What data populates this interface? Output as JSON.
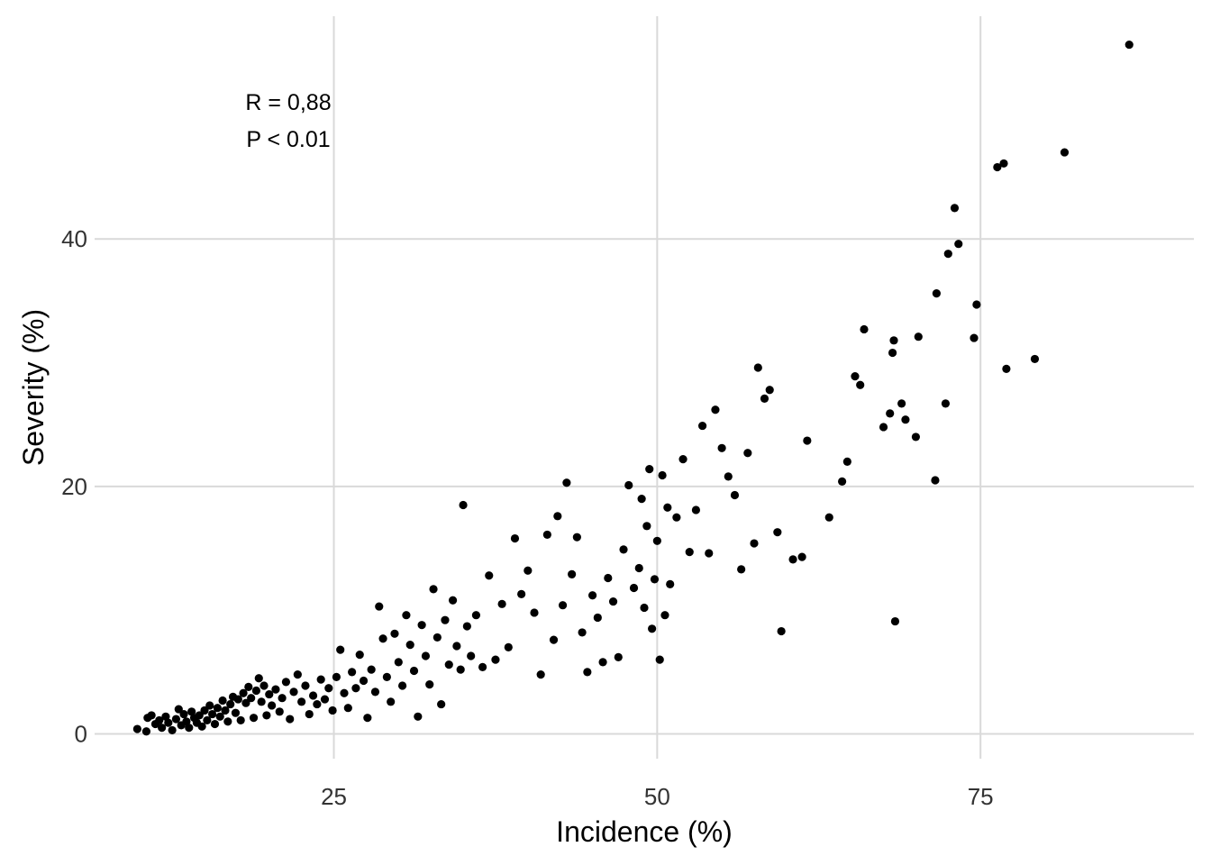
{
  "chart_data": {
    "type": "scatter",
    "title": "",
    "xlabel": "Incidence (%)",
    "ylabel": "Severity (%)",
    "xlim": [
      6.5,
      91.5
    ],
    "ylim": [
      -2.0,
      58.0
    ],
    "x_ticks": [
      25,
      50,
      75
    ],
    "x_tick_labels": [
      "25",
      "50",
      "75"
    ],
    "y_ticks": [
      0,
      20,
      40
    ],
    "y_tick_labels": [
      "0",
      "20",
      "40"
    ],
    "grid": true,
    "legend": "none",
    "point_color": "#000000",
    "annotations": [
      "R = 0,88",
      "P < 0.01"
    ],
    "points": [
      [
        9.8,
        0.4
      ],
      [
        10.5,
        0.2
      ],
      [
        10.6,
        1.3
      ],
      [
        10.9,
        1.5
      ],
      [
        11.2,
        0.8
      ],
      [
        11.5,
        1.1
      ],
      [
        11.7,
        0.5
      ],
      [
        12.0,
        1.4
      ],
      [
        12.2,
        0.9
      ],
      [
        12.5,
        0.3
      ],
      [
        12.8,
        1.2
      ],
      [
        13.0,
        2.0
      ],
      [
        13.2,
        0.7
      ],
      [
        13.4,
        1.6
      ],
      [
        13.6,
        1.0
      ],
      [
        13.8,
        0.5
      ],
      [
        14.0,
        1.8
      ],
      [
        14.2,
        1.3
      ],
      [
        14.4,
        0.9
      ],
      [
        14.6,
        1.5
      ],
      [
        14.8,
        0.6
      ],
      [
        15.0,
        1.9
      ],
      [
        15.2,
        1.1
      ],
      [
        15.4,
        2.3
      ],
      [
        15.6,
        1.6
      ],
      [
        15.8,
        0.8
      ],
      [
        16.0,
        2.1
      ],
      [
        16.2,
        1.4
      ],
      [
        16.4,
        2.7
      ],
      [
        16.6,
        1.9
      ],
      [
        16.8,
        1.0
      ],
      [
        17.0,
        2.4
      ],
      [
        17.2,
        3.0
      ],
      [
        17.4,
        1.7
      ],
      [
        17.6,
        2.8
      ],
      [
        17.8,
        1.1
      ],
      [
        18.0,
        3.3
      ],
      [
        18.2,
        2.5
      ],
      [
        18.4,
        3.8
      ],
      [
        18.6,
        2.9
      ],
      [
        18.8,
        1.3
      ],
      [
        19.0,
        3.5
      ],
      [
        19.2,
        4.5
      ],
      [
        19.4,
        2.6
      ],
      [
        19.6,
        3.9
      ],
      [
        19.8,
        1.5
      ],
      [
        20.0,
        3.2
      ],
      [
        20.2,
        2.3
      ],
      [
        20.5,
        3.6
      ],
      [
        20.8,
        1.8
      ],
      [
        21.0,
        2.9
      ],
      [
        21.3,
        4.2
      ],
      [
        21.6,
        1.2
      ],
      [
        21.9,
        3.4
      ],
      [
        22.2,
        4.8
      ],
      [
        22.5,
        2.6
      ],
      [
        22.8,
        3.9
      ],
      [
        23.1,
        1.6
      ],
      [
        23.4,
        3.1
      ],
      [
        23.7,
        2.4
      ],
      [
        24.0,
        4.4
      ],
      [
        24.3,
        2.8
      ],
      [
        24.6,
        3.7
      ],
      [
        24.9,
        1.9
      ],
      [
        25.2,
        4.6
      ],
      [
        25.5,
        6.8
      ],
      [
        25.8,
        3.3
      ],
      [
        26.1,
        2.1
      ],
      [
        26.4,
        5.0
      ],
      [
        26.7,
        3.7
      ],
      [
        27.0,
        6.4
      ],
      [
        27.3,
        4.3
      ],
      [
        27.6,
        1.3
      ],
      [
        27.9,
        5.2
      ],
      [
        28.2,
        3.4
      ],
      [
        28.5,
        10.3
      ],
      [
        28.8,
        7.7
      ],
      [
        29.1,
        4.6
      ],
      [
        29.4,
        2.6
      ],
      [
        29.7,
        8.1
      ],
      [
        30.0,
        5.8
      ],
      [
        30.3,
        3.9
      ],
      [
        30.6,
        9.6
      ],
      [
        30.9,
        7.2
      ],
      [
        31.2,
        5.1
      ],
      [
        31.5,
        1.4
      ],
      [
        31.8,
        8.8
      ],
      [
        32.1,
        6.3
      ],
      [
        32.4,
        4.0
      ],
      [
        32.7,
        11.7
      ],
      [
        33.0,
        7.8
      ],
      [
        33.3,
        2.4
      ],
      [
        33.6,
        9.2
      ],
      [
        33.9,
        5.6
      ],
      [
        34.2,
        10.8
      ],
      [
        34.5,
        7.1
      ],
      [
        34.8,
        5.2
      ],
      [
        35.0,
        18.5
      ],
      [
        35.3,
        8.7
      ],
      [
        35.6,
        6.3
      ],
      [
        36.0,
        9.6
      ],
      [
        36.5,
        5.4
      ],
      [
        37.0,
        12.8
      ],
      [
        37.5,
        6.0
      ],
      [
        38.0,
        10.5
      ],
      [
        38.5,
        7.0
      ],
      [
        39.0,
        15.8
      ],
      [
        39.5,
        11.3
      ],
      [
        40.0,
        13.2
      ],
      [
        40.5,
        9.8
      ],
      [
        41.0,
        4.8
      ],
      [
        41.5,
        16.1
      ],
      [
        42.0,
        7.6
      ],
      [
        42.3,
        17.6
      ],
      [
        42.7,
        10.4
      ],
      [
        43.0,
        20.3
      ],
      [
        43.4,
        12.9
      ],
      [
        43.8,
        15.9
      ],
      [
        44.2,
        8.2
      ],
      [
        44.6,
        5.0
      ],
      [
        45.0,
        11.2
      ],
      [
        45.4,
        9.4
      ],
      [
        45.8,
        5.8
      ],
      [
        46.2,
        12.6
      ],
      [
        46.6,
        10.7
      ],
      [
        47.0,
        6.2
      ],
      [
        47.4,
        14.9
      ],
      [
        47.8,
        20.1
      ],
      [
        48.2,
        11.8
      ],
      [
        48.6,
        13.4
      ],
      [
        48.8,
        19.0
      ],
      [
        49.0,
        10.2
      ],
      [
        49.2,
        16.8
      ],
      [
        49.4,
        21.4
      ],
      [
        49.6,
        8.5
      ],
      [
        49.8,
        12.5
      ],
      [
        50.0,
        15.6
      ],
      [
        50.2,
        6.0
      ],
      [
        50.4,
        20.9
      ],
      [
        50.6,
        9.6
      ],
      [
        50.8,
        18.3
      ],
      [
        51.0,
        12.1
      ],
      [
        51.5,
        17.5
      ],
      [
        52.0,
        22.2
      ],
      [
        52.5,
        14.7
      ],
      [
        53.0,
        18.1
      ],
      [
        53.5,
        24.9
      ],
      [
        54.0,
        14.6
      ],
      [
        54.5,
        26.2
      ],
      [
        55.0,
        23.1
      ],
      [
        55.5,
        20.8
      ],
      [
        56.0,
        19.3
      ],
      [
        56.5,
        13.3
      ],
      [
        57.0,
        22.7
      ],
      [
        57.5,
        15.4
      ],
      [
        57.8,
        29.6
      ],
      [
        58.3,
        27.1
      ],
      [
        58.7,
        27.8
      ],
      [
        59.3,
        16.3
      ],
      [
        59.6,
        8.3
      ],
      [
        60.5,
        14.1
      ],
      [
        61.2,
        14.3
      ],
      [
        61.6,
        23.7
      ],
      [
        63.3,
        17.5
      ],
      [
        64.3,
        20.4
      ],
      [
        64.7,
        22.0
      ],
      [
        65.3,
        28.9
      ],
      [
        65.7,
        28.2
      ],
      [
        66.0,
        32.7
      ],
      [
        67.5,
        24.8
      ],
      [
        68.0,
        25.9
      ],
      [
        68.2,
        30.8
      ],
      [
        68.3,
        31.8
      ],
      [
        68.4,
        9.1
      ],
      [
        68.9,
        26.7
      ],
      [
        69.2,
        25.4
      ],
      [
        70.0,
        24.0
      ],
      [
        70.2,
        32.1
      ],
      [
        71.5,
        20.5
      ],
      [
        71.6,
        35.6
      ],
      [
        72.3,
        26.7
      ],
      [
        72.5,
        38.8
      ],
      [
        73.0,
        42.5
      ],
      [
        73.3,
        39.6
      ],
      [
        74.5,
        32.0
      ],
      [
        74.7,
        34.7
      ],
      [
        76.3,
        45.8
      ],
      [
        76.8,
        46.1
      ],
      [
        77.0,
        29.5
      ],
      [
        79.2,
        30.3
      ],
      [
        81.5,
        47.0
      ],
      [
        86.5,
        55.7
      ]
    ]
  }
}
